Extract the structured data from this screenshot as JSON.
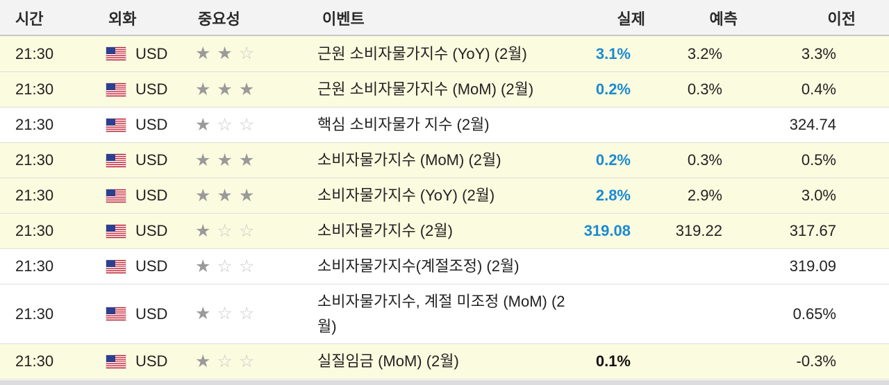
{
  "columns": {
    "time": "시간",
    "currency": "외화",
    "importance": "중요성",
    "event": "이벤트",
    "actual": "실제",
    "forecast": "예측",
    "previous": "이전"
  },
  "colors": {
    "highlight_row": "#fbfbdf",
    "actual_better": "#1a8ad4",
    "actual_neutral": "#111111"
  },
  "icons": {
    "flag": "us-flag-icon",
    "star_filled": "star-filled-icon",
    "star_empty": "star-empty-icon"
  },
  "rows": [
    {
      "time": "21:30",
      "currency": "USD",
      "importance": 2,
      "event": "근원 소비자물가지수 (YoY) (2월)",
      "actual": "3.1%",
      "actual_color": "#1a8ad4",
      "forecast": "3.2%",
      "previous": "3.3%",
      "highlight": true
    },
    {
      "time": "21:30",
      "currency": "USD",
      "importance": 3,
      "event": "근원 소비자물가지수 (MoM) (2월)",
      "actual": "0.2%",
      "actual_color": "#1a8ad4",
      "forecast": "0.3%",
      "previous": "0.4%",
      "highlight": true
    },
    {
      "time": "21:30",
      "currency": "USD",
      "importance": 1,
      "event": "핵심 소비자물가 지수 (2월)",
      "actual": "",
      "actual_color": "#111111",
      "forecast": "",
      "previous": "324.74",
      "highlight": false
    },
    {
      "time": "21:30",
      "currency": "USD",
      "importance": 3,
      "event": "소비자물가지수 (MoM) (2월)",
      "actual": "0.2%",
      "actual_color": "#1a8ad4",
      "forecast": "0.3%",
      "previous": "0.5%",
      "highlight": true
    },
    {
      "time": "21:30",
      "currency": "USD",
      "importance": 3,
      "event": "소비자물가지수 (YoY) (2월)",
      "actual": "2.8%",
      "actual_color": "#1a8ad4",
      "forecast": "2.9%",
      "previous": "3.0%",
      "highlight": true
    },
    {
      "time": "21:30",
      "currency": "USD",
      "importance": 1,
      "event": "소비자물가지수 (2월)",
      "actual": "319.08",
      "actual_color": "#1a8ad4",
      "forecast": "319.22",
      "previous": "317.67",
      "highlight": true
    },
    {
      "time": "21:30",
      "currency": "USD",
      "importance": 1,
      "event": "소비자물가지수(계절조정) (2월)",
      "actual": "",
      "actual_color": "#111111",
      "forecast": "",
      "previous": "319.09",
      "highlight": false
    },
    {
      "time": "21:30",
      "currency": "USD",
      "importance": 1,
      "event": "소비자물가지수, 계절 미조정 (MoM) (2월)",
      "actual": "",
      "actual_color": "#111111",
      "forecast": "",
      "previous": "0.65%",
      "highlight": false
    },
    {
      "time": "21:30",
      "currency": "USD",
      "importance": 1,
      "event": "실질임금 (MoM) (2월)",
      "actual": "0.1%",
      "actual_color": "#111111",
      "forecast": "",
      "previous": "-0.3%",
      "highlight": true
    }
  ]
}
